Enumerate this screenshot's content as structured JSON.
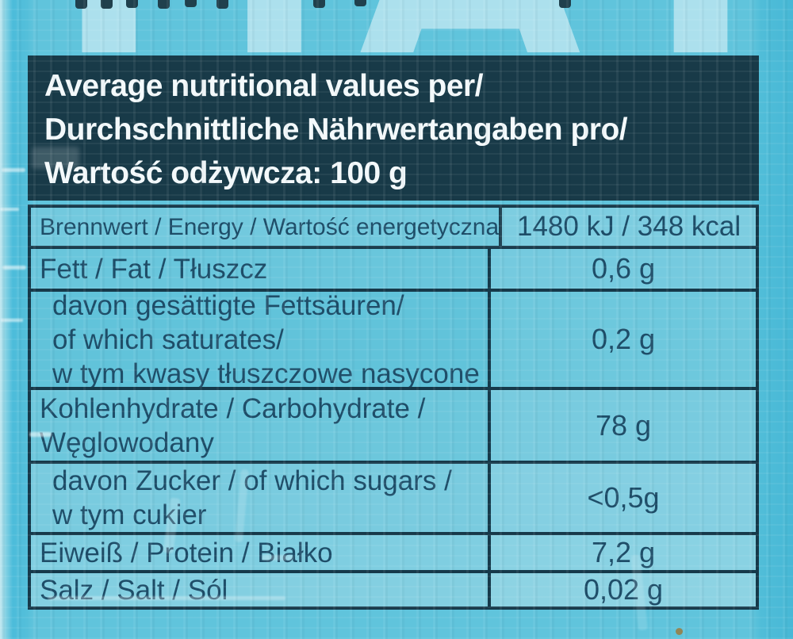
{
  "photo": {
    "cropped_top_text": "HAT",
    "panel": {
      "title_lines": [
        "Average nutritional values per/",
        "Durchschnittliche Nährwertangaben pro/",
        "Wartość odżywcza: 100 g"
      ]
    },
    "nutrition_table": {
      "rows": [
        {
          "label_lines": [
            "Brennwert / Energy / Wartość energetyczna"
          ],
          "value": "1480 kJ / 348 kcal"
        },
        {
          "label_lines": [
            "Fett / Fat / Tłuszcz"
          ],
          "value": "0,6 g"
        },
        {
          "label_lines": [
            "davon gesättigte Fettsäuren/",
            "of which saturates/",
            "w tym kwasy tłuszczowe nasycone"
          ],
          "value": "0,2 g"
        },
        {
          "label_lines": [
            "Kohlenhydrate / Carbohydrate /",
            "Węglowodany"
          ],
          "value": "78 g"
        },
        {
          "label_lines": [
            "davon Zucker / of which sugars /",
            "w tym cukier"
          ],
          "value": "<0,5g"
        },
        {
          "label_lines": [
            "Eiweiß / Protein / Białko"
          ],
          "value": "7,2 g"
        },
        {
          "label_lines": [
            "Salz / Salt / Sól"
          ],
          "value": "0,02 g"
        }
      ]
    },
    "colors": {
      "bag_blue": "#5fc3db",
      "title_panel_bg": "#183a48",
      "title_text": "#f3f9fb",
      "table_border": "#16394a",
      "table_text": "#1e4d68",
      "cell_blue": "#6cc7dc"
    }
  }
}
